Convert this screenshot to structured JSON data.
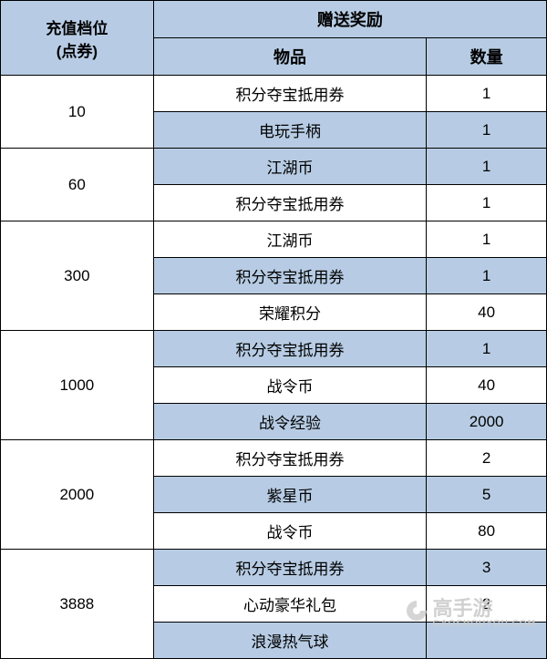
{
  "table": {
    "header": {
      "tier_line1": "充值档位",
      "tier_line2": "(点券)",
      "rewards": "赠送奖励",
      "item": "物品",
      "qty": "数量"
    },
    "col_widths": {
      "tier": "28%",
      "item": "50%",
      "qty": "22%"
    },
    "colors": {
      "header_bg": "#b7cce4",
      "row_white": "#ffffff",
      "row_blue": "#b7cce4",
      "border": "#000000"
    },
    "font": {
      "header_size": 18,
      "cell_size": 17,
      "family": "Microsoft YaHei"
    },
    "tiers": [
      {
        "value": "10",
        "start_bg": "white",
        "rewards": [
          {
            "item": "积分夺宝抵用券",
            "qty": "1"
          },
          {
            "item": "电玩手柄",
            "qty": "1"
          }
        ]
      },
      {
        "value": "60",
        "start_bg": "blue",
        "rewards": [
          {
            "item": "江湖币",
            "qty": "1"
          },
          {
            "item": "积分夺宝抵用券",
            "qty": "1"
          }
        ]
      },
      {
        "value": "300",
        "start_bg": "white",
        "rewards": [
          {
            "item": "江湖币",
            "qty": "1"
          },
          {
            "item": "积分夺宝抵用券",
            "qty": "1"
          },
          {
            "item": "荣耀积分",
            "qty": "40"
          }
        ]
      },
      {
        "value": "1000",
        "start_bg": "blue",
        "rewards": [
          {
            "item": "积分夺宝抵用券",
            "qty": "1"
          },
          {
            "item": "战令币",
            "qty": "40"
          },
          {
            "item": "战令经验",
            "qty": "2000"
          }
        ]
      },
      {
        "value": "2000",
        "start_bg": "white",
        "rewards": [
          {
            "item": "积分夺宝抵用券",
            "qty": "2"
          },
          {
            "item": "紫星币",
            "qty": "5"
          },
          {
            "item": "战令币",
            "qty": "80"
          }
        ]
      },
      {
        "value": "3888",
        "start_bg": "blue",
        "rewards": [
          {
            "item": "积分夺宝抵用券",
            "qty": "3"
          },
          {
            "item": "心动豪华礼包",
            "qty": "2"
          },
          {
            "item": "浪漫热气球",
            "qty": ""
          }
        ]
      }
    ]
  },
  "watermark": {
    "text": "高手游",
    "subtext": "GAOSHOUYOU.COM",
    "color": "#cccccc"
  }
}
